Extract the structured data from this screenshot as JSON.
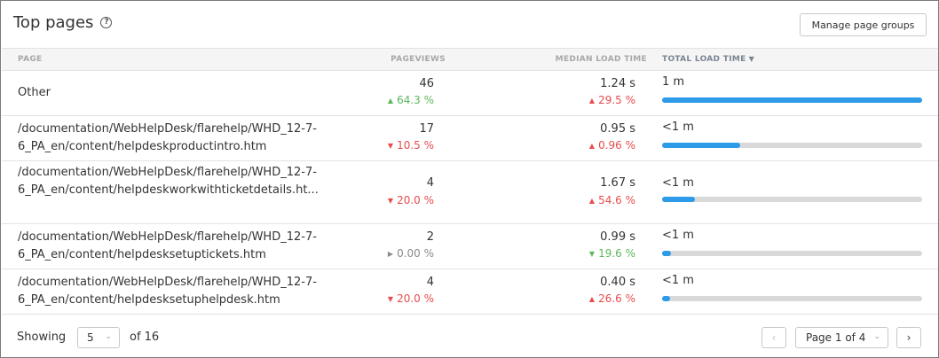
{
  "header": {
    "title": "Top pages",
    "help_icon": "?",
    "manage_button": "Manage page groups"
  },
  "columns": {
    "page": "PAGE",
    "pageviews": "PAGEVIEWS",
    "median_load_time": "MEDIAN LOAD TIME",
    "total_load_time": "TOTAL LOAD TIME",
    "sort_icon": "chevron-down-icon"
  },
  "colors": {
    "bar": "#2d9be8",
    "track": "#d9d9d9",
    "positive": "#5cb85c",
    "negative": "#e84c4c",
    "neutral": "#8a8a8a"
  },
  "rows": [
    {
      "page": "Other",
      "pageviews": "46",
      "pageviews_change": "64.3 %",
      "pageviews_dir": "up",
      "pageviews_tone": "good",
      "median": "1.24 s",
      "median_change": "29.5 %",
      "median_dir": "up",
      "median_tone": "bad",
      "total": "1 m",
      "total_fraction": 1.0
    },
    {
      "page": "/documentation/WebHelpDesk/flarehelp/WHD_12-7-6_PA_en/content/helpdeskproductintro.htm",
      "pageviews": "17",
      "pageviews_change": "10.5 %",
      "pageviews_dir": "down",
      "pageviews_tone": "bad",
      "median": "0.95 s",
      "median_change": "0.96 %",
      "median_dir": "up",
      "median_tone": "bad",
      "total": "<1 m",
      "total_fraction": 0.3
    },
    {
      "page": "/documentation/WebHelpDesk/flarehelp/WHD_12-7-6_PA_en/content/helpdeskworkwithticketdetails.ht...",
      "pageviews": "4",
      "pageviews_change": "20.0 %",
      "pageviews_dir": "down",
      "pageviews_tone": "bad",
      "median": "1.67 s",
      "median_change": "54.6 %",
      "median_dir": "up",
      "median_tone": "bad",
      "total": "<1 m",
      "total_fraction": 0.125
    },
    {
      "page": "/documentation/WebHelpDesk/flarehelp/WHD_12-7-6_PA_en/content/helpdesksetuptickets.htm",
      "pageviews": "2",
      "pageviews_change": "0.00 %",
      "pageviews_dir": "flat",
      "pageviews_tone": "neutral",
      "median": "0.99 s",
      "median_change": "19.6 %",
      "median_dir": "down",
      "median_tone": "good",
      "total": "<1 m",
      "total_fraction": 0.035
    },
    {
      "page": "/documentation/WebHelpDesk/flarehelp/WHD_12-7-6_PA_en/content/helpdesksetuphelpdesk.htm",
      "pageviews": "4",
      "pageviews_change": "20.0 %",
      "pageviews_dir": "down",
      "pageviews_tone": "bad",
      "median": "0.40 s",
      "median_change": "26.6 %",
      "median_dir": "up",
      "median_tone": "bad",
      "total": "<1 m",
      "total_fraction": 0.03
    }
  ],
  "footer": {
    "showing_label": "Showing",
    "page_size": "5",
    "of_label": "of 16",
    "page_select": "Page 1 of 4",
    "prev_icon": "‹",
    "next_icon": "›"
  }
}
